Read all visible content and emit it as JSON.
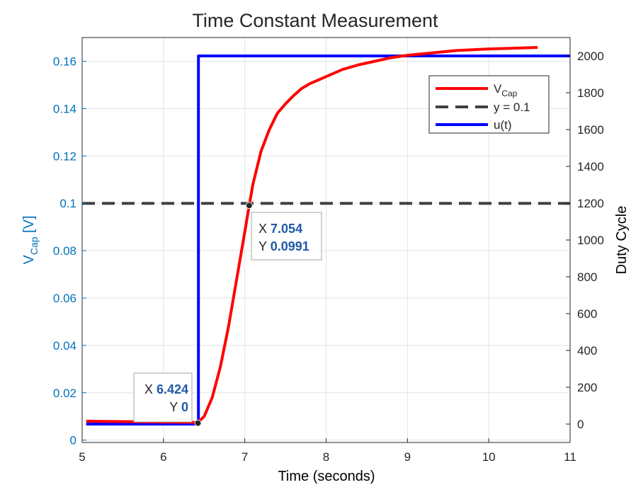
{
  "chart_data": {
    "type": "line",
    "title": "Time Constant Measurement",
    "xlabel": "Time (seconds)",
    "ylabel_left": {
      "main": "V",
      "sub": "Cap",
      "suffix": " [V]"
    },
    "ylabel_right": "Duty Cycle",
    "xlim": [
      5,
      11
    ],
    "ylim_left": [
      -0.001,
      0.17
    ],
    "ylim_right": [
      -100,
      2100
    ],
    "x_ticks": [
      "5",
      "6",
      "7",
      "8",
      "9",
      "10",
      "11"
    ],
    "y_left_ticks": [
      "0",
      "0.02",
      "0.04",
      "0.06",
      "0.08",
      "0.1",
      "0.12",
      "0.14",
      "0.16"
    ],
    "y_right_ticks": [
      "0",
      "200",
      "400",
      "600",
      "800",
      "1000",
      "1200",
      "1400",
      "1600",
      "1800",
      "2000"
    ],
    "grid": true,
    "legend_position": "top-right",
    "series": [
      {
        "name": "V",
        "name_sub": "Cap",
        "axis": "left",
        "color": "#ff0000",
        "x": [
          5.05,
          6.424,
          6.5,
          6.6,
          6.7,
          6.8,
          6.9,
          7.0,
          7.054,
          7.1,
          7.2,
          7.3,
          7.4,
          7.5,
          7.6,
          7.7,
          7.8,
          7.9,
          8.0,
          8.2,
          8.4,
          8.6,
          8.8,
          9.0,
          9.3,
          9.6,
          10.0,
          10.3,
          10.6
        ],
        "y": [
          0.008,
          0.0075,
          0.01,
          0.018,
          0.031,
          0.048,
          0.068,
          0.088,
          0.0991,
          0.108,
          0.122,
          0.131,
          0.138,
          0.142,
          0.1455,
          0.1485,
          0.1505,
          0.152,
          0.1535,
          0.1565,
          0.1585,
          0.16,
          0.1615,
          0.1625,
          0.1635,
          0.1645,
          0.1652,
          0.1655,
          0.1658
        ]
      },
      {
        "name": "y = 0.1",
        "axis": "left",
        "color": "#404040",
        "x": [
          5,
          11
        ],
        "y": [
          0.1,
          0.1
        ]
      },
      {
        "name": "u(t)",
        "axis": "right",
        "color": "#0000ff",
        "x": [
          5.05,
          6.43,
          6.43,
          11
        ],
        "y": [
          0,
          0,
          2000,
          2000
        ]
      }
    ],
    "annotations": [
      {
        "x_label": "X",
        "x_value": "6.424",
        "y_label": "Y",
        "y_value": "0",
        "point_x": 6.424,
        "point_y": 0.0072
      },
      {
        "x_label": "X",
        "x_value": "7.054",
        "y_label": "Y",
        "y_value": "0.0991",
        "point_x": 7.054,
        "point_y": 0.0991
      }
    ],
    "colors": {
      "left_axis": "#0072bd",
      "right_axis": "#262626",
      "tip_value": "#1f5aa6"
    }
  }
}
